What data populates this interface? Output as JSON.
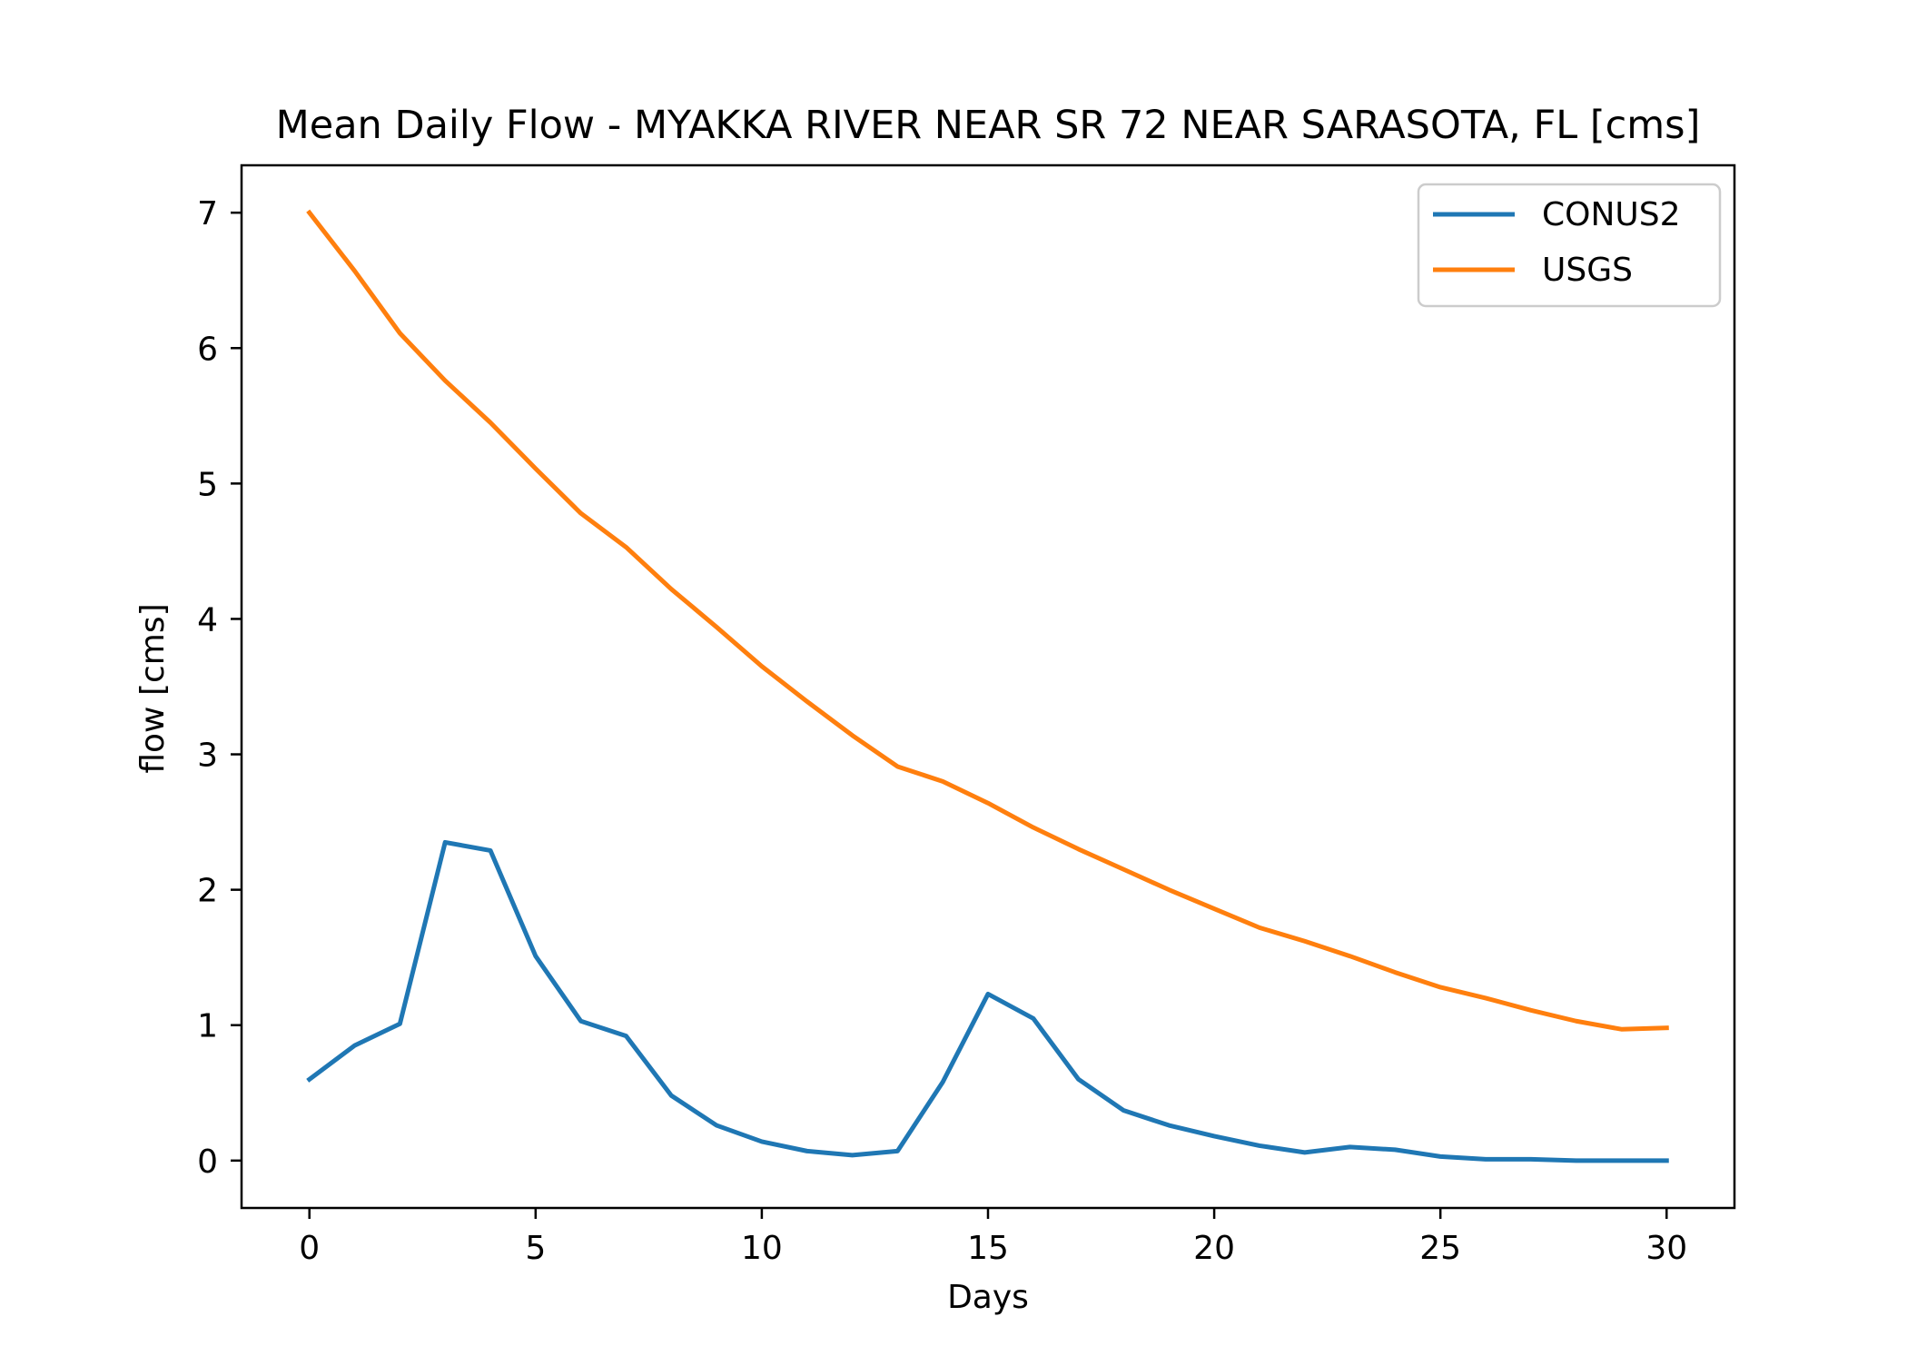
{
  "chart_data": {
    "type": "line",
    "title": "Mean Daily Flow - MYAKKA RIVER NEAR SR 72 NEAR SARASOTA, FL [cms]",
    "xlabel": "Days",
    "ylabel": "flow [cms]",
    "xlim": [
      -1.5,
      31.5
    ],
    "ylim": [
      -0.35,
      7.35
    ],
    "xticks": [
      0,
      5,
      10,
      15,
      20,
      25,
      30
    ],
    "yticks": [
      0,
      1,
      2,
      3,
      4,
      5,
      6,
      7
    ],
    "grid": false,
    "legend_position": "top-right",
    "x": [
      0,
      1,
      2,
      3,
      4,
      5,
      6,
      7,
      8,
      9,
      10,
      11,
      12,
      13,
      14,
      15,
      16,
      17,
      18,
      19,
      20,
      21,
      22,
      23,
      24,
      25,
      26,
      27,
      28,
      29,
      30
    ],
    "series": [
      {
        "name": "CONUS2",
        "color": "#1f77b4",
        "values": [
          0.6,
          0.85,
          1.01,
          2.35,
          2.29,
          1.51,
          1.03,
          0.92,
          0.48,
          0.26,
          0.14,
          0.07,
          0.04,
          0.07,
          0.58,
          1.23,
          1.05,
          0.6,
          0.37,
          0.26,
          0.18,
          0.11,
          0.06,
          0.1,
          0.08,
          0.03,
          0.01,
          0.01,
          0.0,
          0.0,
          0.0
        ]
      },
      {
        "name": "USGS",
        "color": "#ff7f0e",
        "values": [
          7.0,
          6.57,
          6.11,
          5.76,
          5.45,
          5.11,
          4.78,
          4.53,
          4.22,
          3.94,
          3.65,
          3.39,
          3.14,
          2.91,
          2.8,
          2.64,
          2.46,
          2.3,
          2.15,
          2.0,
          1.86,
          1.72,
          1.62,
          1.51,
          1.39,
          1.28,
          1.2,
          1.11,
          1.03,
          0.97,
          0.98
        ]
      }
    ]
  }
}
